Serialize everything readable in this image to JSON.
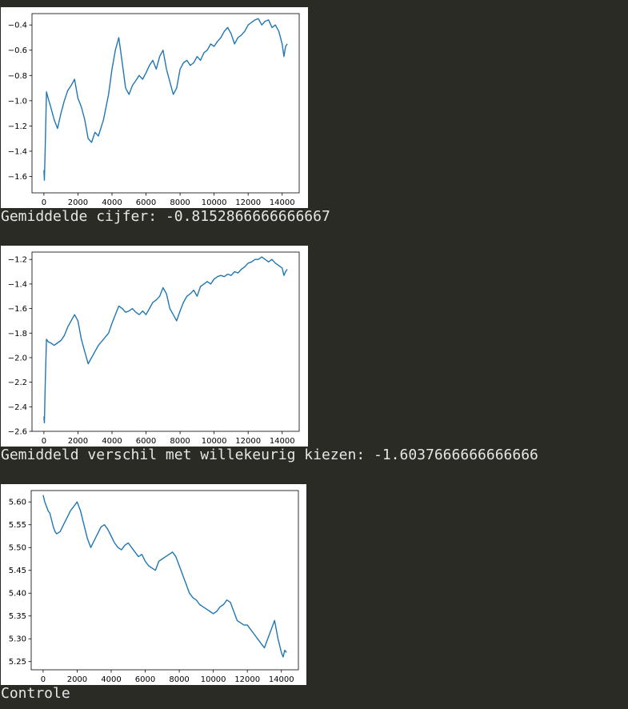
{
  "outputs": [
    {
      "caption": "Gemiddelde cijfer: -0.8152866666666667"
    },
    {
      "caption": "Gemiddeld verschil met willekeurig kiezen: -1.6037666666666666"
    },
    {
      "caption": "Controle"
    }
  ],
  "colors": {
    "line": "#1f77b4",
    "background": "#2b2b26",
    "caption_text": "#e6e6e6"
  },
  "chart_data": [
    {
      "type": "line",
      "title": "",
      "xlabel": "",
      "ylabel": "",
      "xlim": [
        -700,
        15000
      ],
      "ylim": [
        -1.73,
        -0.31
      ],
      "xticks": [
        0,
        2000,
        4000,
        6000,
        8000,
        10000,
        12000,
        14000
      ],
      "xtick_labels": [
        "0",
        "2000",
        "4000",
        "6000",
        "8000",
        "10000",
        "12000",
        "14000"
      ],
      "yticks": [
        -1.6,
        -1.4,
        -1.2,
        -1.0,
        -0.8,
        -0.6,
        -0.4
      ],
      "ytick_labels": [
        "−1.6",
        "−1.4",
        "−1.2",
        "−1.0",
        "−0.8",
        "−0.6",
        "−0.4"
      ],
      "grid": false,
      "series": [
        {
          "x": [
            0,
            30,
            80,
            150,
            250,
            400,
            600,
            800,
            1000,
            1200,
            1400,
            1600,
            1800,
            2000,
            2200,
            2400,
            2600,
            2800,
            3000,
            3200,
            3500,
            3800,
            4000,
            4200,
            4400,
            4600,
            4800,
            5000,
            5200,
            5400,
            5600,
            5800,
            6000,
            6200,
            6400,
            6600,
            6800,
            7000,
            7200,
            7400,
            7600,
            7800,
            8000,
            8200,
            8400,
            8600,
            8800,
            9000,
            9200,
            9400,
            9600,
            9800,
            10000,
            10200,
            10400,
            10600,
            10800,
            11000,
            11200,
            11400,
            11600,
            11800,
            12000,
            12200,
            12400,
            12600,
            12800,
            13000,
            13200,
            13400,
            13600,
            13800,
            14000,
            14100,
            14200,
            14300
          ],
          "y": [
            -1.55,
            -1.63,
            -1.35,
            -0.93,
            -0.98,
            -1.05,
            -1.15,
            -1.22,
            -1.1,
            -1.0,
            -0.92,
            -0.88,
            -0.83,
            -0.98,
            -1.05,
            -1.15,
            -1.3,
            -1.33,
            -1.25,
            -1.28,
            -1.15,
            -0.95,
            -0.75,
            -0.6,
            -0.5,
            -0.7,
            -0.9,
            -0.95,
            -0.88,
            -0.84,
            -0.8,
            -0.83,
            -0.78,
            -0.72,
            -0.68,
            -0.75,
            -0.65,
            -0.6,
            -0.75,
            -0.85,
            -0.95,
            -0.9,
            -0.75,
            -0.7,
            -0.68,
            -0.72,
            -0.7,
            -0.65,
            -0.68,
            -0.62,
            -0.6,
            -0.55,
            -0.57,
            -0.53,
            -0.5,
            -0.45,
            -0.42,
            -0.47,
            -0.55,
            -0.5,
            -0.48,
            -0.45,
            -0.4,
            -0.38,
            -0.36,
            -0.35,
            -0.4,
            -0.37,
            -0.36,
            -0.42,
            -0.4,
            -0.45,
            -0.55,
            -0.65,
            -0.57,
            -0.55
          ]
        }
      ]
    },
    {
      "type": "line",
      "title": "",
      "xlabel": "",
      "ylabel": "",
      "xlim": [
        -700,
        15000
      ],
      "ylim": [
        -2.6,
        -1.14
      ],
      "xticks": [
        0,
        2000,
        4000,
        6000,
        8000,
        10000,
        12000,
        14000
      ],
      "xtick_labels": [
        "0",
        "2000",
        "4000",
        "6000",
        "8000",
        "10000",
        "12000",
        "14000"
      ],
      "yticks": [
        -2.6,
        -2.4,
        -2.2,
        -2.0,
        -1.8,
        -1.6,
        -1.4,
        -1.2
      ],
      "ytick_labels": [
        "−2.6",
        "−2.4",
        "−2.2",
        "−2.0",
        "−1.8",
        "−1.6",
        "−1.4",
        "−1.2"
      ],
      "grid": false,
      "series": [
        {
          "x": [
            0,
            30,
            80,
            150,
            250,
            400,
            600,
            800,
            1000,
            1200,
            1400,
            1600,
            1800,
            2000,
            2200,
            2400,
            2600,
            2800,
            3000,
            3200,
            3500,
            3800,
            4000,
            4200,
            4400,
            4600,
            4800,
            5000,
            5200,
            5400,
            5600,
            5800,
            6000,
            6200,
            6400,
            6600,
            6800,
            7000,
            7200,
            7400,
            7600,
            7800,
            8000,
            8200,
            8400,
            8600,
            8800,
            9000,
            9200,
            9400,
            9600,
            9800,
            10000,
            10200,
            10400,
            10600,
            10800,
            11000,
            11200,
            11400,
            11600,
            11800,
            12000,
            12200,
            12400,
            12600,
            12800,
            13000,
            13200,
            13400,
            13600,
            13800,
            14000,
            14100,
            14200,
            14300
          ],
          "y": [
            -2.48,
            -2.53,
            -2.2,
            -1.85,
            -1.87,
            -1.88,
            -1.9,
            -1.88,
            -1.86,
            -1.82,
            -1.75,
            -1.7,
            -1.65,
            -1.7,
            -1.85,
            -1.95,
            -2.05,
            -2.0,
            -1.95,
            -1.9,
            -1.85,
            -1.8,
            -1.72,
            -1.65,
            -1.58,
            -1.6,
            -1.63,
            -1.62,
            -1.6,
            -1.63,
            -1.65,
            -1.62,
            -1.65,
            -1.6,
            -1.55,
            -1.53,
            -1.5,
            -1.43,
            -1.48,
            -1.6,
            -1.65,
            -1.7,
            -1.62,
            -1.55,
            -1.5,
            -1.48,
            -1.45,
            -1.5,
            -1.42,
            -1.4,
            -1.38,
            -1.4,
            -1.36,
            -1.34,
            -1.33,
            -1.34,
            -1.32,
            -1.33,
            -1.3,
            -1.31,
            -1.28,
            -1.26,
            -1.23,
            -1.22,
            -1.2,
            -1.2,
            -1.18,
            -1.2,
            -1.22,
            -1.2,
            -1.23,
            -1.25,
            -1.27,
            -1.33,
            -1.3,
            -1.28
          ]
        }
      ]
    },
    {
      "type": "line",
      "title": "",
      "xlabel": "",
      "ylabel": "",
      "xlim": [
        -700,
        15000
      ],
      "ylim": [
        5.232,
        5.625
      ],
      "xticks": [
        0,
        2000,
        4000,
        6000,
        8000,
        10000,
        12000,
        14000
      ],
      "xtick_labels": [
        "0",
        "2000",
        "4000",
        "6000",
        "8000",
        "10000",
        "12000",
        "14000"
      ],
      "yticks": [
        5.25,
        5.3,
        5.35,
        5.4,
        5.45,
        5.5,
        5.55,
        5.6
      ],
      "ytick_labels": [
        "5.25",
        "5.30",
        "5.35",
        "5.40",
        "5.45",
        "5.50",
        "5.55",
        "5.60"
      ],
      "grid": false,
      "series": [
        {
          "x": [
            0,
            100,
            200,
            300,
            400,
            500,
            600,
            700,
            800,
            1000,
            1200,
            1400,
            1600,
            1800,
            2000,
            2200,
            2400,
            2600,
            2800,
            3000,
            3200,
            3400,
            3600,
            3800,
            4000,
            4200,
            4400,
            4600,
            4800,
            5000,
            5200,
            5400,
            5600,
            5800,
            6000,
            6200,
            6400,
            6600,
            6800,
            7000,
            7200,
            7400,
            7600,
            7800,
            8000,
            8200,
            8400,
            8600,
            8800,
            9000,
            9200,
            9400,
            9600,
            9800,
            10000,
            10200,
            10400,
            10600,
            10800,
            11000,
            11200,
            11400,
            11600,
            11800,
            12000,
            12200,
            12400,
            12600,
            12800,
            13000,
            13200,
            13400,
            13600,
            13800,
            14000,
            14100,
            14200,
            14300
          ],
          "y": [
            5.615,
            5.6,
            5.59,
            5.58,
            5.575,
            5.56,
            5.545,
            5.535,
            5.53,
            5.535,
            5.55,
            5.565,
            5.58,
            5.59,
            5.6,
            5.58,
            5.55,
            5.52,
            5.5,
            5.515,
            5.53,
            5.545,
            5.55,
            5.54,
            5.525,
            5.51,
            5.5,
            5.495,
            5.505,
            5.51,
            5.5,
            5.49,
            5.48,
            5.485,
            5.47,
            5.46,
            5.455,
            5.45,
            5.47,
            5.475,
            5.48,
            5.485,
            5.49,
            5.48,
            5.46,
            5.44,
            5.42,
            5.4,
            5.39,
            5.385,
            5.375,
            5.37,
            5.365,
            5.36,
            5.355,
            5.36,
            5.37,
            5.375,
            5.385,
            5.38,
            5.36,
            5.34,
            5.335,
            5.33,
            5.33,
            5.32,
            5.31,
            5.3,
            5.29,
            5.28,
            5.3,
            5.32,
            5.34,
            5.3,
            5.27,
            5.26,
            5.275,
            5.27
          ]
        }
      ]
    }
  ]
}
